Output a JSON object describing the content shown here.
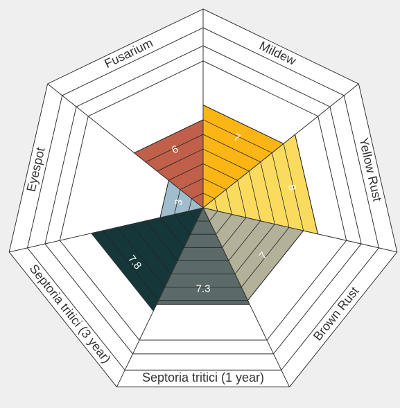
{
  "chart_data": {
    "type": "radial-area",
    "categories": [
      "Mildew",
      "Yellow Rust",
      "Brown Rust",
      "Septoria tritici (1 year)",
      "Septoria tritici (3 year)",
      "Eyespot",
      "Fusarium"
    ],
    "values": [
      7,
      8,
      7,
      7.3,
      7.8,
      3,
      6
    ],
    "colors": [
      "#fbb515",
      "#fadb5e",
      "#b3b19a",
      "#5b6a68",
      "#16373a",
      "#9fbdcd",
      "#c0604a"
    ],
    "rlim": [
      0,
      10
    ],
    "rticks": [
      1,
      2,
      3,
      4,
      5,
      6,
      7,
      8,
      9,
      10
    ],
    "grid": true
  }
}
